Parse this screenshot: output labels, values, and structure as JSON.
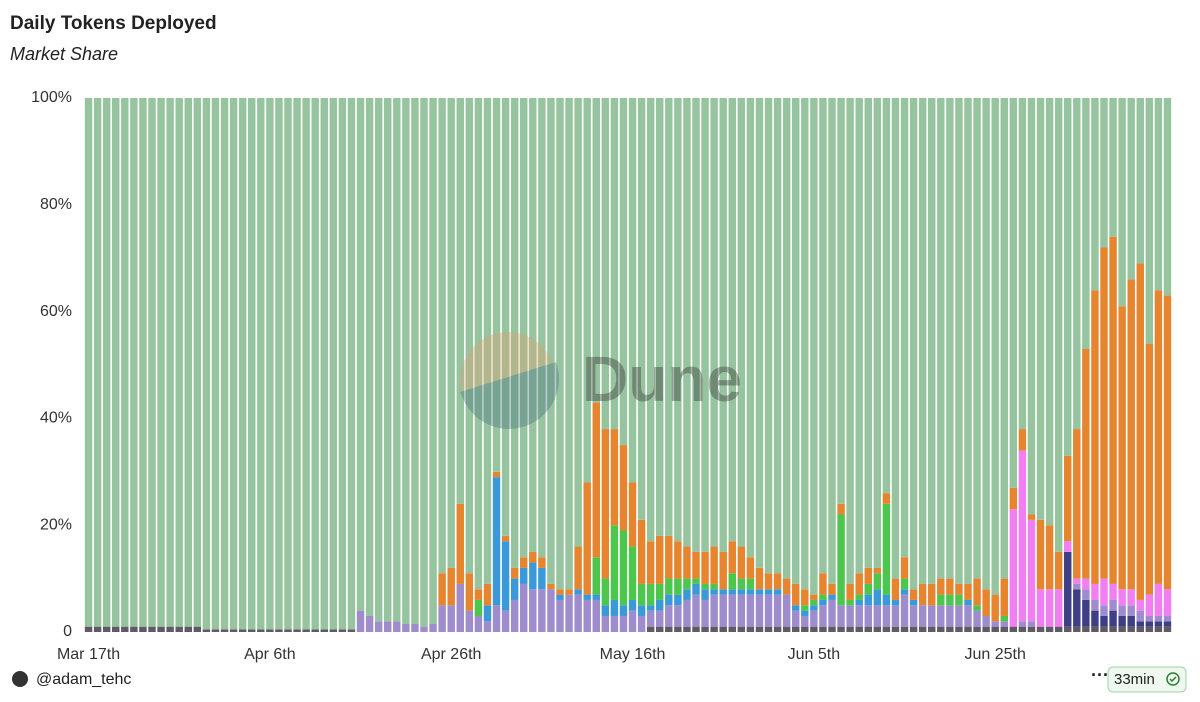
{
  "chart_data": {
    "type": "bar",
    "stacked": true,
    "title": "Daily Tokens Deployed",
    "subtitle": "Market Share",
    "watermark": "Dune",
    "categories": [
      "Mar 17th",
      null,
      null,
      null,
      null,
      null,
      null,
      null,
      null,
      null,
      null,
      null,
      null,
      null,
      null,
      null,
      null,
      null,
      null,
      null,
      "Apr 6th",
      null,
      null,
      null,
      null,
      null,
      null,
      null,
      null,
      null,
      null,
      null,
      null,
      null,
      null,
      null,
      null,
      null,
      null,
      null,
      "Apr 26th",
      null,
      null,
      null,
      null,
      null,
      null,
      null,
      null,
      null,
      null,
      null,
      null,
      null,
      null,
      null,
      null,
      null,
      null,
      null,
      "May 16th",
      null,
      null,
      null,
      null,
      null,
      null,
      null,
      null,
      null,
      null,
      null,
      null,
      null,
      null,
      null,
      null,
      null,
      null,
      null,
      "Jun 5th",
      null,
      null,
      null,
      null,
      null,
      null,
      null,
      null,
      null,
      null,
      null,
      null,
      null,
      null,
      null,
      null,
      null,
      null,
      null,
      "Jun 25th",
      null,
      null,
      null,
      null,
      null,
      null,
      null,
      null,
      null,
      null,
      null,
      null,
      null,
      null,
      null,
      null,
      null,
      null,
      null
    ],
    "series": [
      {
        "color": "#5f5a66",
        "values": [
          1,
          1,
          1,
          1,
          1,
          1,
          1,
          1,
          1,
          1,
          1,
          1,
          1,
          0.5,
          0.5,
          0.5,
          0.5,
          0.5,
          0.5,
          0.5,
          0.5,
          0.5,
          0.5,
          0.5,
          0.5,
          0.5,
          0.5,
          0.5,
          0.5,
          0.5,
          0,
          0,
          0,
          0,
          0,
          0,
          0,
          0,
          0,
          0,
          0,
          0,
          0,
          0,
          0,
          0,
          0,
          0,
          0,
          0,
          0,
          0,
          0,
          0,
          0,
          0,
          0,
          0,
          0,
          0,
          0,
          0,
          1,
          1,
          1,
          1,
          1,
          1,
          1,
          1,
          1,
          1,
          1,
          1,
          1,
          1,
          1,
          1,
          1,
          1,
          1,
          1,
          1,
          1,
          1,
          1,
          1,
          1,
          1,
          1,
          1,
          1,
          1,
          1,
          1,
          1,
          1,
          1,
          1,
          1,
          1,
          1,
          1,
          1,
          1,
          1,
          1,
          1,
          1,
          1,
          1,
          1,
          1,
          1,
          1,
          1,
          1,
          1,
          1,
          1
        ]
      },
      {
        "color": "#3f3f87",
        "values": [
          0,
          0,
          0,
          0,
          0,
          0,
          0,
          0,
          0,
          0,
          0,
          0,
          0,
          0,
          0,
          0,
          0,
          0,
          0,
          0,
          0,
          0,
          0,
          0,
          0,
          0,
          0,
          0,
          0,
          0,
          0,
          0,
          0,
          0,
          0,
          0,
          0,
          0,
          0,
          0,
          0,
          0,
          0,
          0,
          0,
          0,
          0,
          0,
          0,
          0,
          0,
          0,
          0,
          0,
          0,
          0,
          0,
          0,
          0,
          0,
          0,
          0,
          0,
          0,
          0,
          0,
          0,
          0,
          0,
          0,
          0,
          0,
          0,
          0,
          0,
          0,
          0,
          0,
          0,
          0,
          0,
          0,
          0,
          0,
          0,
          0,
          0,
          0,
          0,
          0,
          0,
          0,
          0,
          0,
          0,
          0,
          0,
          0,
          0,
          0,
          0,
          0,
          0,
          0,
          0,
          0,
          0,
          0,
          14,
          7,
          5,
          3,
          2,
          3,
          2,
          2,
          1,
          1,
          1,
          1
        ]
      },
      {
        "color": "#9f8ccd",
        "values": [
          0,
          0,
          0,
          0,
          0,
          0,
          0,
          0,
          0,
          0,
          0,
          0,
          0,
          0,
          0,
          0,
          0,
          0,
          0,
          0,
          0,
          0,
          0,
          0,
          0,
          0,
          0,
          0,
          0,
          0,
          4,
          3,
          2,
          2,
          2,
          1.5,
          1.5,
          1,
          1.5,
          5,
          5,
          9,
          4,
          3,
          2,
          5,
          4,
          6,
          9,
          8,
          8,
          8,
          6,
          7,
          7,
          6,
          6,
          3,
          3,
          3,
          4,
          3,
          3,
          3,
          4,
          4,
          5,
          6,
          5,
          6,
          6,
          6,
          6,
          6,
          6,
          6,
          6,
          6,
          3,
          2,
          3,
          4,
          5,
          4,
          4,
          4,
          4,
          4,
          4,
          4,
          6,
          4,
          4,
          4,
          4,
          4,
          4,
          4,
          3,
          2,
          1,
          1,
          0,
          1,
          1,
          0,
          0,
          0,
          0,
          1,
          2,
          2,
          2,
          2,
          2,
          2,
          2,
          1,
          1,
          1
        ]
      },
      {
        "color": "#f27ff2",
        "values": [
          0,
          0,
          0,
          0,
          0,
          0,
          0,
          0,
          0,
          0,
          0,
          0,
          0,
          0,
          0,
          0,
          0,
          0,
          0,
          0,
          0,
          0,
          0,
          0,
          0,
          0,
          0,
          0,
          0,
          0,
          0,
          0,
          0,
          0,
          0,
          0,
          0,
          0,
          0,
          0,
          0,
          0,
          0,
          0,
          0,
          0,
          0,
          0,
          0,
          0,
          0,
          0,
          0,
          0,
          0,
          0,
          0,
          0,
          0,
          0,
          0,
          0,
          0,
          0,
          0,
          0,
          0,
          0,
          0,
          0,
          0,
          0,
          0,
          0,
          0,
          0,
          0,
          0,
          0,
          0,
          0,
          0,
          0,
          0,
          0,
          0,
          0,
          0,
          0,
          0,
          0,
          0,
          0,
          0,
          0,
          0,
          0,
          0,
          0,
          0,
          0,
          0,
          22,
          32,
          19,
          7,
          7,
          7,
          2,
          1,
          2,
          3,
          5,
          3,
          3,
          3,
          2,
          4,
          6,
          5
        ]
      },
      {
        "color": "#3a9ad9",
        "values": [
          0,
          0,
          0,
          0,
          0,
          0,
          0,
          0,
          0,
          0,
          0,
          0,
          0,
          0,
          0,
          0,
          0,
          0,
          0,
          0,
          0,
          0,
          0,
          0,
          0,
          0,
          0,
          0,
          0,
          0,
          0,
          0,
          0,
          0,
          0,
          0,
          0,
          0,
          0,
          0,
          0,
          0,
          0,
          0,
          3,
          24,
          13,
          4,
          3,
          5,
          4,
          0,
          1,
          0,
          1,
          1,
          1,
          2,
          3,
          2,
          2,
          2,
          1,
          2,
          2,
          2,
          2,
          2,
          2,
          1,
          1,
          1,
          1,
          1,
          1,
          1,
          1,
          0,
          1,
          1,
          1,
          1,
          1,
          0,
          0,
          1,
          2,
          3,
          2,
          1,
          1,
          1,
          0,
          0,
          0,
          0,
          0,
          1,
          0,
          0,
          0,
          0,
          0,
          0,
          0,
          0,
          0,
          0,
          0,
          0,
          0,
          0,
          0,
          0,
          0,
          0,
          0,
          0,
          0,
          0
        ]
      },
      {
        "color": "#4cc64c",
        "values": [
          0,
          0,
          0,
          0,
          0,
          0,
          0,
          0,
          0,
          0,
          0,
          0,
          0,
          0,
          0,
          0,
          0,
          0,
          0,
          0,
          0,
          0,
          0,
          0,
          0,
          0,
          0,
          0,
          0,
          0,
          0,
          0,
          0,
          0,
          0,
          0,
          0,
          0,
          0,
          0,
          0,
          0,
          0,
          3,
          0,
          0,
          0,
          0,
          0,
          0,
          0,
          0,
          0,
          0,
          0,
          0,
          7,
          5,
          14,
          14,
          10,
          4,
          4,
          3,
          3,
          3,
          2,
          1,
          1,
          1,
          0,
          3,
          2,
          2,
          0,
          0,
          0,
          0,
          0,
          1,
          1,
          1,
          0,
          17,
          1,
          1,
          2,
          3,
          17,
          0,
          2,
          0,
          0,
          0,
          2,
          2,
          2,
          0,
          1,
          0,
          0,
          1,
          0,
          0,
          0,
          0,
          0,
          0,
          0,
          0,
          0,
          0,
          0,
          0,
          0,
          0,
          0,
          0,
          0,
          0
        ]
      },
      {
        "color": "#e7852f",
        "values": [
          0,
          0,
          0,
          0,
          0,
          0,
          0,
          0,
          0,
          0,
          0,
          0,
          0,
          0,
          0,
          0,
          0,
          0,
          0,
          0,
          0,
          0,
          0,
          0,
          0,
          0,
          0,
          0,
          0,
          0,
          0,
          0,
          0,
          0,
          0,
          0,
          0,
          0,
          0,
          6,
          7,
          15,
          7,
          2,
          4,
          1,
          1,
          2,
          2,
          2,
          2,
          1,
          1,
          1,
          8,
          21,
          29,
          28,
          18,
          16,
          12,
          12,
          8,
          9,
          8,
          7,
          6,
          5,
          6,
          7,
          7,
          6,
          6,
          4,
          4,
          3,
          3,
          3,
          4,
          3,
          1,
          4,
          2,
          2,
          3,
          4,
          3,
          1,
          2,
          4,
          4,
          2,
          4,
          4,
          3,
          3,
          2,
          3,
          5,
          5,
          5,
          7,
          4,
          4,
          1,
          13,
          12,
          7,
          16,
          28,
          43,
          55,
          62,
          65,
          53,
          58,
          63,
          47,
          55,
          55
        ]
      },
      {
        "color": "#96c49e",
        "values": [
          99,
          99,
          99,
          99,
          99,
          99,
          99,
          99,
          99,
          99,
          99,
          99,
          99,
          99.5,
          99.5,
          99.5,
          99.5,
          99.5,
          99.5,
          99.5,
          99.5,
          99.5,
          99.5,
          99.5,
          99.5,
          99.5,
          99.5,
          99.5,
          99.5,
          99.5,
          96,
          97,
          98,
          98,
          98,
          98.5,
          98.5,
          99,
          98.5,
          89,
          88,
          76,
          89,
          92,
          91,
          70,
          82,
          88,
          86,
          85,
          86,
          91,
          92,
          92,
          84,
          72,
          57,
          62,
          62,
          65,
          72,
          79,
          83,
          82,
          82,
          83,
          84,
          85,
          85,
          84,
          85,
          83,
          84,
          86,
          88,
          89,
          89,
          90,
          91,
          92,
          93,
          89,
          91,
          76,
          91,
          89,
          88,
          88,
          74,
          90,
          86,
          92,
          91,
          91,
          90,
          90,
          91,
          91,
          90,
          92,
          93,
          90,
          73,
          62,
          78,
          79,
          80,
          85,
          67,
          62,
          47,
          36,
          28,
          26,
          39,
          34,
          31,
          46,
          36,
          37
        ]
      }
    ],
    "ylim": [
      0,
      100
    ],
    "yticks": [
      0,
      {
        "value": 20,
        "label": "20%"
      },
      {
        "value": 40,
        "label": "40%"
      },
      {
        "value": 60,
        "label": "60%"
      },
      {
        "value": 80,
        "label": "80%"
      },
      {
        "value": 100,
        "label": "100%"
      }
    ],
    "grid": false
  },
  "footer": {
    "author": "@adam_tehc",
    "updated": "33min"
  }
}
